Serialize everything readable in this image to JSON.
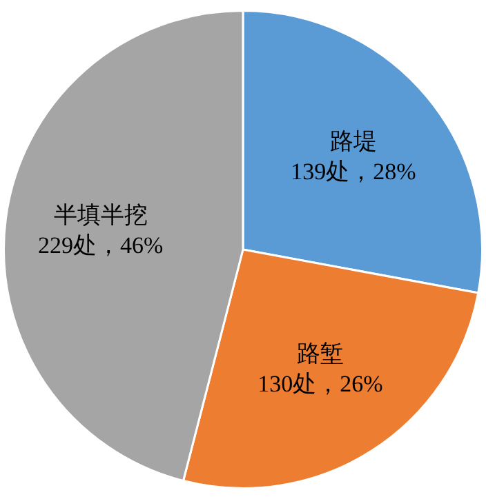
{
  "chart_data": {
    "type": "pie",
    "categories": [
      "路堤",
      "路堑",
      "半填半挖"
    ],
    "values": [
      139,
      130,
      229
    ],
    "colors": [
      "#5b9bd5",
      "#ed7d31",
      "#a5a5a5"
    ],
    "value_labels": [
      "139处，28%",
      "130处，26%",
      "229处，46%"
    ],
    "legend": false
  }
}
